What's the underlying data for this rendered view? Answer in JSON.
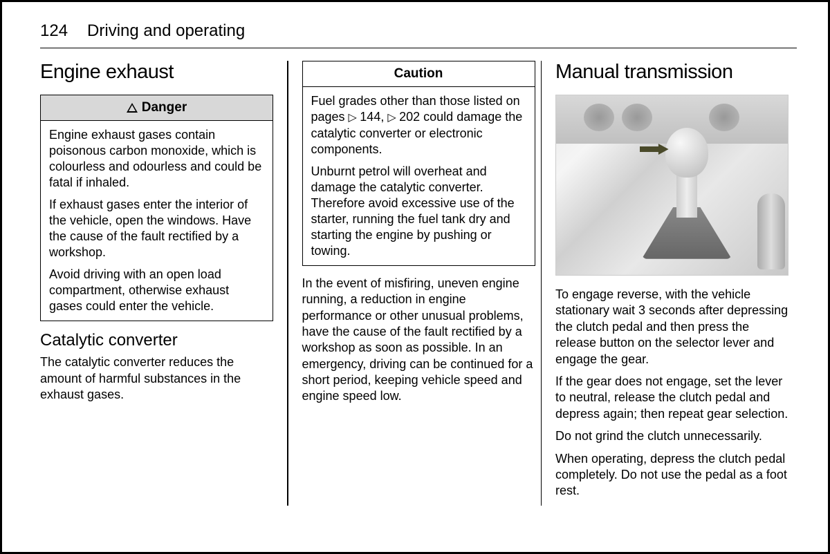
{
  "page_number": "124",
  "chapter_title": "Driving and operating",
  "col1": {
    "heading": "Engine exhaust",
    "danger_label": "Danger",
    "danger_p1": "Engine exhaust gases contain poisonous carbon monoxide, which is colourless and odourless and could be fatal if inhaled.",
    "danger_p2": "If exhaust gases enter the interior of the vehicle, open the windows. Have the cause of the fault rectified by a workshop.",
    "danger_p3": "Avoid driving with an open load compartment, otherwise exhaust gases could enter the vehicle.",
    "sub_heading": "Catalytic converter",
    "sub_text": "The catalytic converter reduces the amount of harmful substances in the exhaust gases."
  },
  "col2": {
    "caution_label": "Caution",
    "caution_p1_a": "Fuel grades other than those listed on pages ",
    "caution_ref1": "144,",
    "caution_ref2": "202",
    "caution_p1_b": " could damage the catalytic converter or electronic components.",
    "caution_p2": "Unburnt petrol will overheat and damage the catalytic converter. Therefore avoid excessive use of the starter, running the fuel tank dry and starting the engine by pushing or towing.",
    "body_p1": "In the event of misfiring, uneven engine running, a reduction in engine performance or other unusual problems, have the cause of the fault rectified by a workshop as soon as possible. In an emergency, driving can be continued for a short period, keeping vehicle speed and engine speed low."
  },
  "col3": {
    "heading": "Manual transmission",
    "p1": "To engage reverse, with the vehicle stationary wait 3 seconds after depressing the clutch pedal and then press the release button on the selector lever and engage the gear.",
    "p2": "If the gear does not engage, set the lever to neutral, release the clutch pedal and depress again; then repeat gear selection.",
    "p3": "Do not grind the clutch unnecessarily.",
    "p4": "When operating, depress the clutch pedal completely. Do not use the pedal as a foot rest."
  }
}
